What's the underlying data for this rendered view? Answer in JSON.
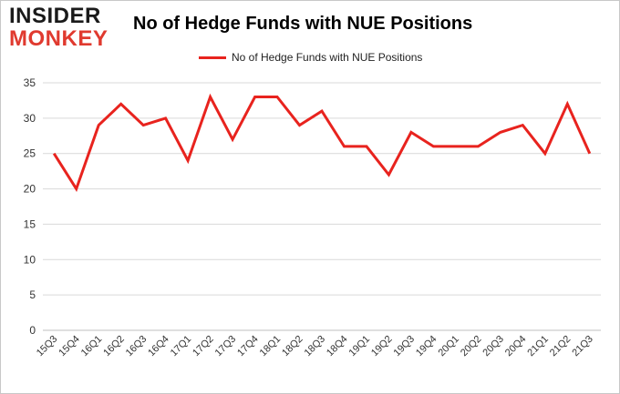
{
  "logo": {
    "line1": "INSIDER",
    "line2": "MONKEY"
  },
  "colors": {
    "line": "#e8231e",
    "grid": "#d9d9d9",
    "logo_red": "#e03a2f"
  },
  "chart_data": {
    "type": "line",
    "title": "No of Hedge Funds with NUE Positions",
    "xlabel": "",
    "ylabel": "",
    "ylim": [
      0,
      35
    ],
    "yticks": [
      0,
      5,
      10,
      15,
      20,
      25,
      30,
      35
    ],
    "grid": true,
    "legend_position": "top-center",
    "categories": [
      "15Q3",
      "15Q4",
      "16Q1",
      "16Q2",
      "16Q3",
      "16Q4",
      "17Q1",
      "17Q2",
      "17Q3",
      "17Q4",
      "18Q1",
      "18Q2",
      "18Q3",
      "18Q4",
      "19Q1",
      "19Q2",
      "19Q3",
      "19Q4",
      "20Q1",
      "20Q2",
      "20Q3",
      "20Q4",
      "21Q1",
      "21Q2",
      "21Q3"
    ],
    "series": [
      {
        "name": "No of Hedge Funds with NUE Positions",
        "values": [
          25,
          20,
          29,
          32,
          29,
          30,
          24,
          33,
          27,
          33,
          33,
          29,
          31,
          26,
          26,
          22,
          28,
          26,
          26,
          26,
          28,
          29,
          25,
          32,
          25
        ]
      }
    ]
  }
}
